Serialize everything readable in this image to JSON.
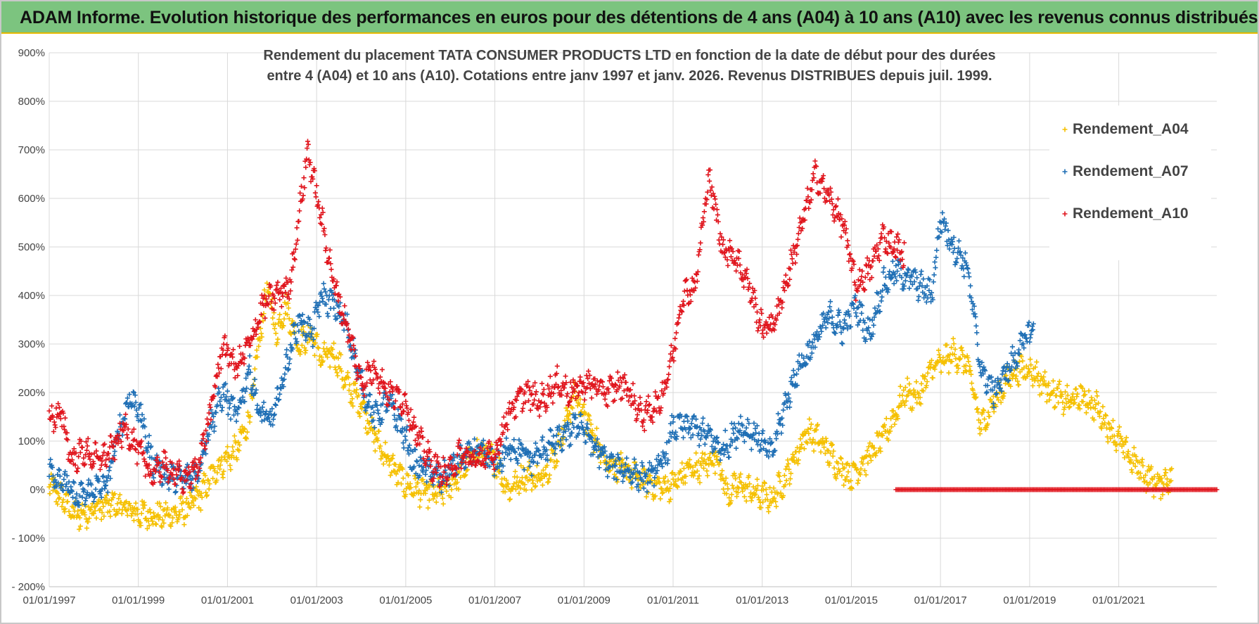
{
  "banner": {
    "title": "ADAM Informe. Evolution historique des performances en euros pour des détentions de 4 ans (A04) à 10 ans (A10) avec les revenus connus distribués"
  },
  "chart_data": {
    "type": "scatter",
    "title_lines": [
      "Rendement du placement TATA CONSUMER PRODUCTS LTD en fonction de la date de début pour des durées",
      "entre 4 (A04) et 10 ans (A10).  Cotations entre janv 1997 et janv. 2026. Revenus DISTRIBUES depuis juil. 1999."
    ],
    "xlabel": "",
    "ylabel": "",
    "xlim": [
      1997.0,
      2023.2
    ],
    "ylim": [
      -200,
      900
    ],
    "x_ticks": [
      1997,
      1999,
      2001,
      2003,
      2005,
      2007,
      2009,
      2011,
      2013,
      2015,
      2017,
      2019,
      2021
    ],
    "x_tick_labels": [
      "01/01/1997",
      "01/01/1999",
      "01/01/2001",
      "01/01/2003",
      "01/01/2005",
      "01/01/2007",
      "01/01/2009",
      "01/01/2011",
      "01/01/2013",
      "01/01/2015",
      "01/01/2017",
      "01/01/2019",
      "01/01/2021"
    ],
    "y_ticks": [
      -200,
      -100,
      0,
      100,
      200,
      300,
      400,
      500,
      600,
      700,
      800,
      900
    ],
    "y_tick_labels": [
      "- 200%",
      "- 100%",
      "0%",
      "100%",
      "200%",
      "300%",
      "400%",
      "500%",
      "600%",
      "700%",
      "800%",
      "900%"
    ],
    "grid": true,
    "legend_position": "top-right",
    "series": [
      {
        "name": "Rendement_A04",
        "color": "#f5c000",
        "points": [
          [
            1997.0,
            10
          ],
          [
            1997.3,
            -20
          ],
          [
            1997.6,
            -55
          ],
          [
            1998.0,
            -40
          ],
          [
            1998.5,
            -30
          ],
          [
            1999.0,
            -50
          ],
          [
            1999.5,
            -55
          ],
          [
            2000.0,
            -45
          ],
          [
            2000.4,
            -10
          ],
          [
            2000.8,
            50
          ],
          [
            2001.2,
            80
          ],
          [
            2001.5,
            150
          ],
          [
            2001.7,
            300
          ],
          [
            2001.9,
            420
          ],
          [
            2002.1,
            320
          ],
          [
            2002.3,
            380
          ],
          [
            2002.6,
            300
          ],
          [
            2002.9,
            320
          ],
          [
            2003.1,
            270
          ],
          [
            2003.4,
            280
          ],
          [
            2003.7,
            210
          ],
          [
            2004.0,
            180
          ],
          [
            2004.3,
            110
          ],
          [
            2004.6,
            60
          ],
          [
            2005.0,
            10
          ],
          [
            2005.4,
            -5
          ],
          [
            2005.8,
            -10
          ],
          [
            2006.2,
            30
          ],
          [
            2006.6,
            80
          ],
          [
            2007.0,
            60
          ],
          [
            2007.3,
            0
          ],
          [
            2007.7,
            30
          ],
          [
            2008.0,
            20
          ],
          [
            2008.4,
            80
          ],
          [
            2008.8,
            200
          ],
          [
            2009.1,
            130
          ],
          [
            2009.5,
            60
          ],
          [
            2009.9,
            40
          ],
          [
            2010.3,
            20
          ],
          [
            2010.7,
            5
          ],
          [
            2011.0,
            10
          ],
          [
            2011.3,
            40
          ],
          [
            2011.7,
            50
          ],
          [
            2012.0,
            70
          ],
          [
            2012.2,
            -10
          ],
          [
            2012.5,
            10
          ],
          [
            2012.9,
            -10
          ],
          [
            2013.2,
            -20
          ],
          [
            2013.5,
            20
          ],
          [
            2013.7,
            60
          ],
          [
            2014.0,
            120
          ],
          [
            2014.3,
            100
          ],
          [
            2014.7,
            50
          ],
          [
            2015.0,
            30
          ],
          [
            2015.3,
            60
          ],
          [
            2015.6,
            90
          ],
          [
            2015.9,
            140
          ],
          [
            2016.2,
            200
          ],
          [
            2016.5,
            190
          ],
          [
            2016.8,
            250
          ],
          [
            2017.0,
            260
          ],
          [
            2017.3,
            280
          ],
          [
            2017.6,
            260
          ],
          [
            2017.9,
            130
          ],
          [
            2018.2,
            180
          ],
          [
            2018.6,
            240
          ],
          [
            2019.0,
            250
          ],
          [
            2019.4,
            210
          ],
          [
            2019.8,
            180
          ],
          [
            2020.2,
            190
          ],
          [
            2020.5,
            170
          ],
          [
            2020.7,
            140
          ],
          [
            2021.0,
            100
          ],
          [
            2021.3,
            60
          ],
          [
            2021.6,
            30
          ],
          [
            2021.9,
            10
          ],
          [
            2022.2,
            30
          ]
        ]
      },
      {
        "name": "Rendement_A07",
        "color": "#1f6fb5",
        "points": [
          [
            1997.0,
            40
          ],
          [
            1997.3,
            20
          ],
          [
            1997.6,
            -20
          ],
          [
            1998.0,
            0
          ],
          [
            1998.3,
            10
          ],
          [
            1998.5,
            100
          ],
          [
            1998.8,
            190
          ],
          [
            1999.0,
            170
          ],
          [
            1999.3,
            60
          ],
          [
            1999.6,
            30
          ],
          [
            2000.0,
            20
          ],
          [
            2000.3,
            30
          ],
          [
            2000.6,
            130
          ],
          [
            2000.9,
            200
          ],
          [
            2001.2,
            150
          ],
          [
            2001.5,
            250
          ],
          [
            2001.7,
            160
          ],
          [
            2002.0,
            140
          ],
          [
            2002.3,
            250
          ],
          [
            2002.6,
            350
          ],
          [
            2002.9,
            320
          ],
          [
            2003.1,
            400
          ],
          [
            2003.4,
            380
          ],
          [
            2003.7,
            330
          ],
          [
            2004.0,
            220
          ],
          [
            2004.3,
            150
          ],
          [
            2004.6,
            180
          ],
          [
            2004.9,
            130
          ],
          [
            2005.2,
            50
          ],
          [
            2005.5,
            40
          ],
          [
            2005.8,
            20
          ],
          [
            2006.2,
            60
          ],
          [
            2006.6,
            80
          ],
          [
            2007.0,
            50
          ],
          [
            2007.4,
            90
          ],
          [
            2007.8,
            60
          ],
          [
            2008.2,
            90
          ],
          [
            2008.6,
            110
          ],
          [
            2008.9,
            140
          ],
          [
            2009.2,
            90
          ],
          [
            2009.6,
            50
          ],
          [
            2010.0,
            40
          ],
          [
            2010.4,
            20
          ],
          [
            2010.8,
            60
          ],
          [
            2011.0,
            130
          ],
          [
            2011.4,
            130
          ],
          [
            2011.8,
            110
          ],
          [
            2012.1,
            80
          ],
          [
            2012.5,
            130
          ],
          [
            2012.9,
            110
          ],
          [
            2013.2,
            70
          ],
          [
            2013.5,
            170
          ],
          [
            2013.8,
            250
          ],
          [
            2014.1,
            290
          ],
          [
            2014.5,
            360
          ],
          [
            2014.8,
            330
          ],
          [
            2015.1,
            380
          ],
          [
            2015.4,
            320
          ],
          [
            2015.7,
            420
          ],
          [
            2016.0,
            450
          ],
          [
            2016.4,
            430
          ],
          [
            2016.8,
            400
          ],
          [
            2017.0,
            560
          ],
          [
            2017.3,
            500
          ],
          [
            2017.6,
            460
          ],
          [
            2017.9,
            250
          ],
          [
            2018.2,
            200
          ],
          [
            2018.6,
            260
          ],
          [
            2018.9,
            310
          ],
          [
            2019.1,
            340
          ]
        ]
      },
      {
        "name": "Rendement_A10",
        "color": "#e0151d",
        "points": [
          [
            1997.0,
            150
          ],
          [
            1997.3,
            150
          ],
          [
            1997.5,
            60
          ],
          [
            1997.8,
            80
          ],
          [
            1998.1,
            60
          ],
          [
            1998.4,
            80
          ],
          [
            1998.7,
            130
          ],
          [
            1999.0,
            80
          ],
          [
            1999.3,
            30
          ],
          [
            1999.6,
            50
          ],
          [
            2000.0,
            20
          ],
          [
            2000.3,
            40
          ],
          [
            2000.6,
            150
          ],
          [
            2000.9,
            300
          ],
          [
            2001.2,
            250
          ],
          [
            2001.5,
            300
          ],
          [
            2001.8,
            380
          ],
          [
            2002.1,
            400
          ],
          [
            2002.4,
            420
          ],
          [
            2002.8,
            700
          ],
          [
            2003.1,
            560
          ],
          [
            2003.4,
            420
          ],
          [
            2003.7,
            330
          ],
          [
            2004.0,
            220
          ],
          [
            2004.3,
            250
          ],
          [
            2004.6,
            200
          ],
          [
            2005.0,
            180
          ],
          [
            2005.3,
            100
          ],
          [
            2005.6,
            50
          ],
          [
            2005.9,
            30
          ],
          [
            2006.2,
            70
          ],
          [
            2006.6,
            60
          ],
          [
            2007.0,
            70
          ],
          [
            2007.3,
            160
          ],
          [
            2007.7,
            200
          ],
          [
            2008.0,
            180
          ],
          [
            2008.4,
            220
          ],
          [
            2008.7,
            200
          ],
          [
            2009.1,
            220
          ],
          [
            2009.5,
            200
          ],
          [
            2009.9,
            220
          ],
          [
            2010.3,
            150
          ],
          [
            2010.7,
            180
          ],
          [
            2011.0,
            280
          ],
          [
            2011.2,
            400
          ],
          [
            2011.5,
            420
          ],
          [
            2011.8,
            650
          ],
          [
            2012.1,
            500
          ],
          [
            2012.4,
            480
          ],
          [
            2012.7,
            420
          ],
          [
            2013.0,
            330
          ],
          [
            2013.3,
            350
          ],
          [
            2013.6,
            450
          ],
          [
            2013.9,
            550
          ],
          [
            2014.2,
            650
          ],
          [
            2014.5,
            600
          ],
          [
            2014.8,
            550
          ],
          [
            2015.1,
            420
          ],
          [
            2015.4,
            450
          ],
          [
            2015.7,
            520
          ],
          [
            2016.0,
            500
          ],
          [
            2016.2,
            480
          ]
        ]
      }
    ],
    "zero_band": {
      "series": "Rendement_A10",
      "x_start": 2016.0,
      "x_end": 2023.2,
      "y": 0
    }
  }
}
